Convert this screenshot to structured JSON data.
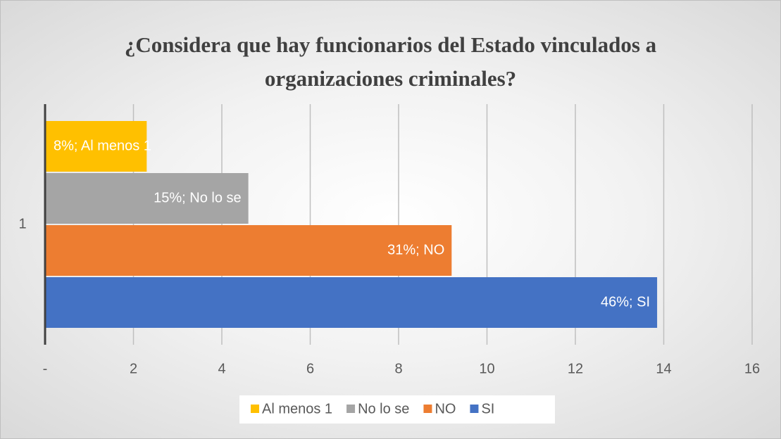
{
  "chart_data": {
    "type": "bar",
    "orientation": "horizontal",
    "title": "¿Considera que hay funcionarios del Estado vinculados a organizaciones criminales?",
    "categories": [
      "1"
    ],
    "series": [
      {
        "name": "Al menos 1",
        "color": "#ffc000",
        "values": [
          2.3
        ],
        "labels": [
          "8%; Al menos 1"
        ]
      },
      {
        "name": "No lo se",
        "color": "#a5a5a5",
        "values": [
          4.6
        ],
        "labels": [
          "15%; No lo se"
        ]
      },
      {
        "name": "NO",
        "color": "#ed7d31",
        "values": [
          9.2
        ],
        "labels": [
          "31%; NO"
        ]
      },
      {
        "name": "SI",
        "color": "#4472c4",
        "values": [
          13.85
        ],
        "labels": [
          "46%; SI"
        ]
      }
    ],
    "xlim": [
      0,
      16
    ],
    "xticks": [
      {
        "value": 0,
        "label": "-"
      },
      2,
      4,
      6,
      8,
      10,
      12,
      14,
      16
    ],
    "grid": true,
    "legend": "bottom"
  }
}
